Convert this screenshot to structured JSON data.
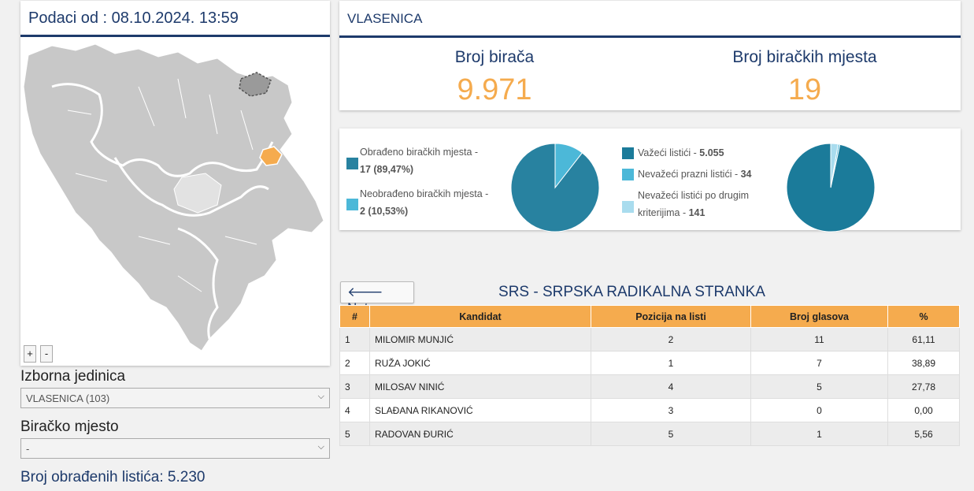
{
  "header": {
    "data_timestamp": "Podaci od : 08.10.2024. 13:59"
  },
  "left": {
    "zoom_in": "+",
    "zoom_out": "-",
    "electoral_unit_label": "Izborna jedinica",
    "electoral_unit_value": "VLASENICA (103)",
    "polling_station_label": "Biračko mjesto",
    "polling_station_value": "-",
    "processed_ballots": "Broj obrađenih listića: 5.230"
  },
  "info": {
    "municipality": "VLASENICA",
    "voters_label": "Broj birača",
    "voters_value": "9.971",
    "stations_label": "Broj biračkih mjesta",
    "stations_value": "19"
  },
  "pie_left": {
    "items": [
      {
        "line1": "Obrađeno biračkih mjesta -",
        "line2": "17 (89,47%)",
        "value": 89.47,
        "color": "#2882a0"
      },
      {
        "line1": "Neobrađeno biračkih mjesta -",
        "line2": "2 (10,53%)",
        "value": 10.53,
        "color": "#4cb8d8"
      }
    ]
  },
  "pie_right": {
    "items": [
      {
        "text": "Važeći listići - ",
        "num": "5.055",
        "value": 5055,
        "color": "#1b7b9a"
      },
      {
        "text": "Nevažeći prazni listići - ",
        "num": "34",
        "value": 34,
        "color": "#4cb8d8"
      },
      {
        "text": "Nevažeći listići po drugim",
        "text2": "kriterijima - ",
        "num": "141",
        "value": 141,
        "color": "#a9dcee"
      }
    ]
  },
  "results": {
    "back_label": "Natrag",
    "party_title": "SRS - SRPSKA RADIKALNA STRANKA",
    "columns": [
      "#",
      "Kandidat",
      "Pozicija na listi",
      "Broj glasova",
      "%"
    ],
    "rows": [
      [
        "1",
        "MILOMIR MUNJIĆ",
        "2",
        "11",
        "61,11"
      ],
      [
        "2",
        "RUŽA JOKIĆ",
        "1",
        "7",
        "38,89"
      ],
      [
        "3",
        "MILOSAV NINIĆ",
        "4",
        "5",
        "27,78"
      ],
      [
        "4",
        "SLAĐANA RIKANOVIĆ",
        "3",
        "0",
        "0,00"
      ],
      [
        "5",
        "RADOVAN ĐURIĆ",
        "5",
        "1",
        "5,56"
      ]
    ]
  },
  "colors": {
    "accent": "#1d3a6b",
    "orange": "#f5ab4e",
    "highlight_region": "#f5ab4e",
    "map_fill": "#c8c8c8"
  }
}
